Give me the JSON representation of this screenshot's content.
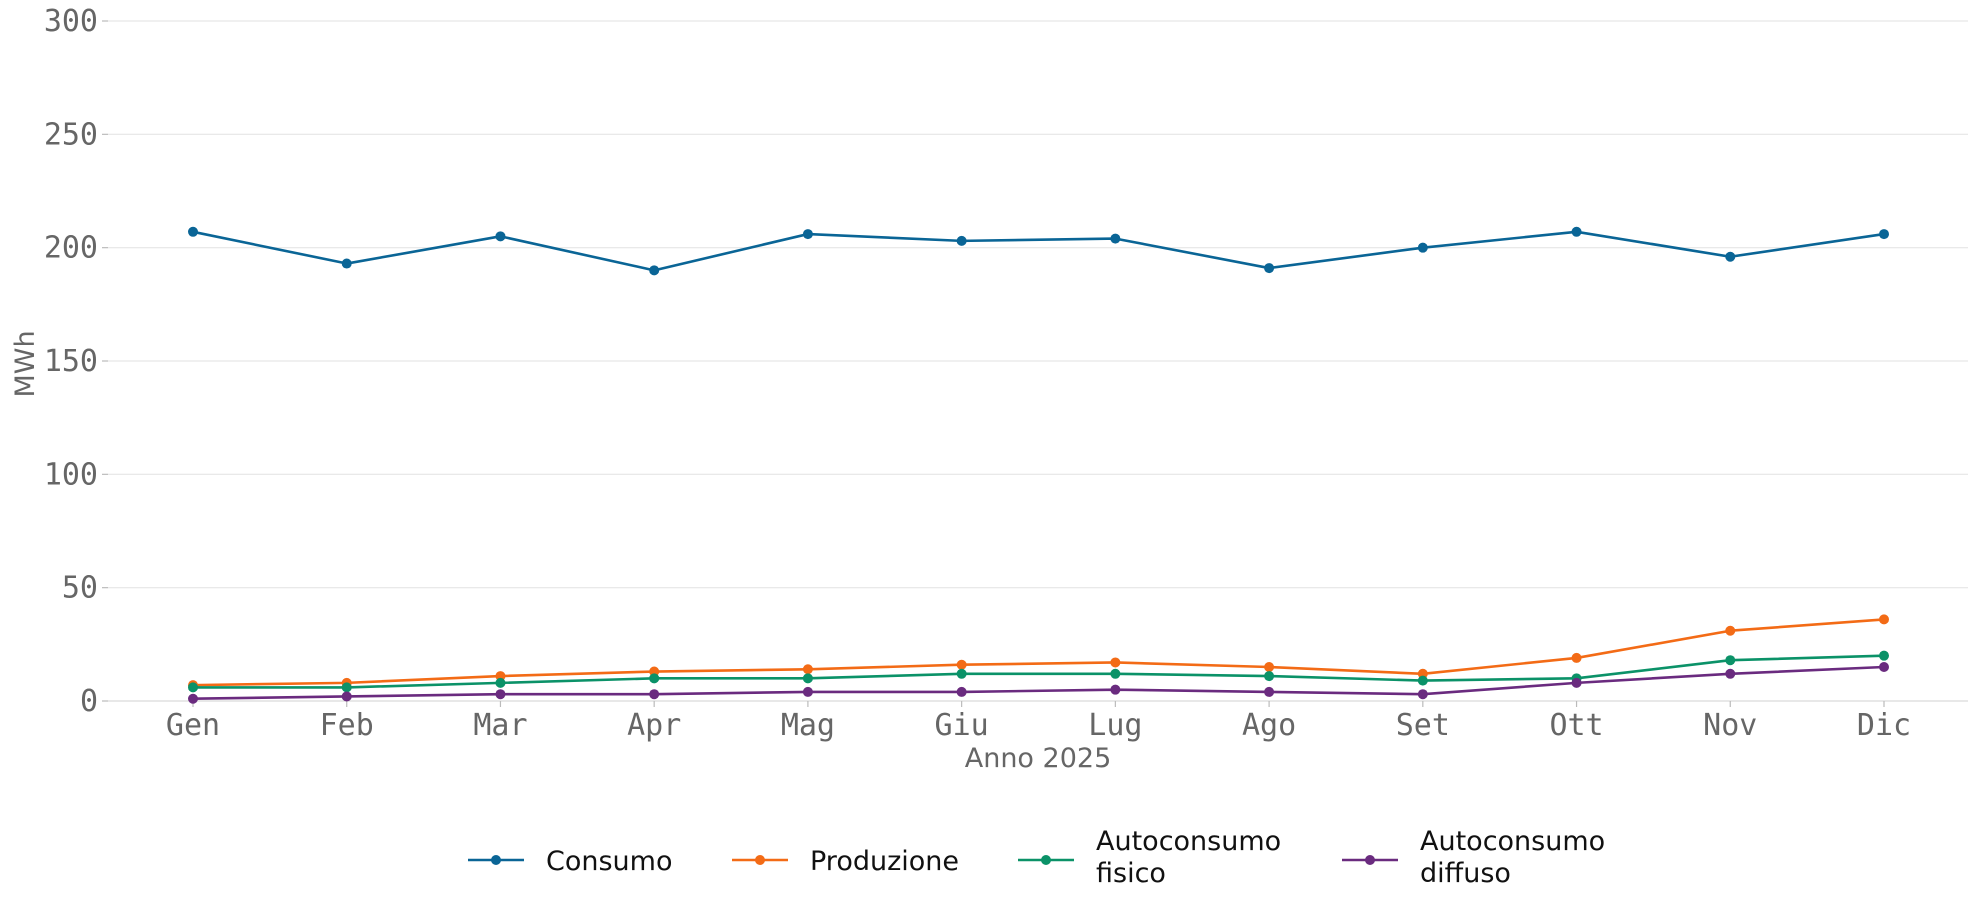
{
  "chart_data": {
    "type": "line",
    "title": "",
    "xlabel": "Anno 2025",
    "ylabel": "MWh",
    "categories": [
      "Gen",
      "Feb",
      "Mar",
      "Apr",
      "Mag",
      "Giu",
      "Lug",
      "Ago",
      "Set",
      "Ott",
      "Nov",
      "Dic"
    ],
    "ylim": [
      0,
      300
    ],
    "yticks": [
      0,
      50,
      100,
      150,
      200,
      250,
      300
    ],
    "grid": "horizontal",
    "legend_position": "bottom",
    "series": [
      {
        "name": "Consumo",
        "color": "#0a6596",
        "values": [
          207,
          193,
          205,
          190,
          206,
          203,
          204,
          191,
          200,
          207,
          196,
          206
        ]
      },
      {
        "name": "Produzione",
        "color": "#f36b16",
        "values": [
          7,
          8,
          11,
          13,
          14,
          16,
          17,
          15,
          12,
          19,
          31,
          36
        ]
      },
      {
        "name": "Autoconsumo fisico",
        "legend_lines": [
          "Autoconsumo",
          "fisico"
        ],
        "color": "#0b9268",
        "values": [
          6,
          6,
          8,
          10,
          10,
          12,
          12,
          11,
          9,
          10,
          18,
          20
        ]
      },
      {
        "name": "Autoconsumo diffuso",
        "legend_lines": [
          "Autoconsumo",
          "diffuso"
        ],
        "color": "#6a2b7f",
        "values": [
          1,
          2,
          3,
          3,
          4,
          4,
          5,
          4,
          3,
          8,
          12,
          15
        ]
      }
    ]
  }
}
